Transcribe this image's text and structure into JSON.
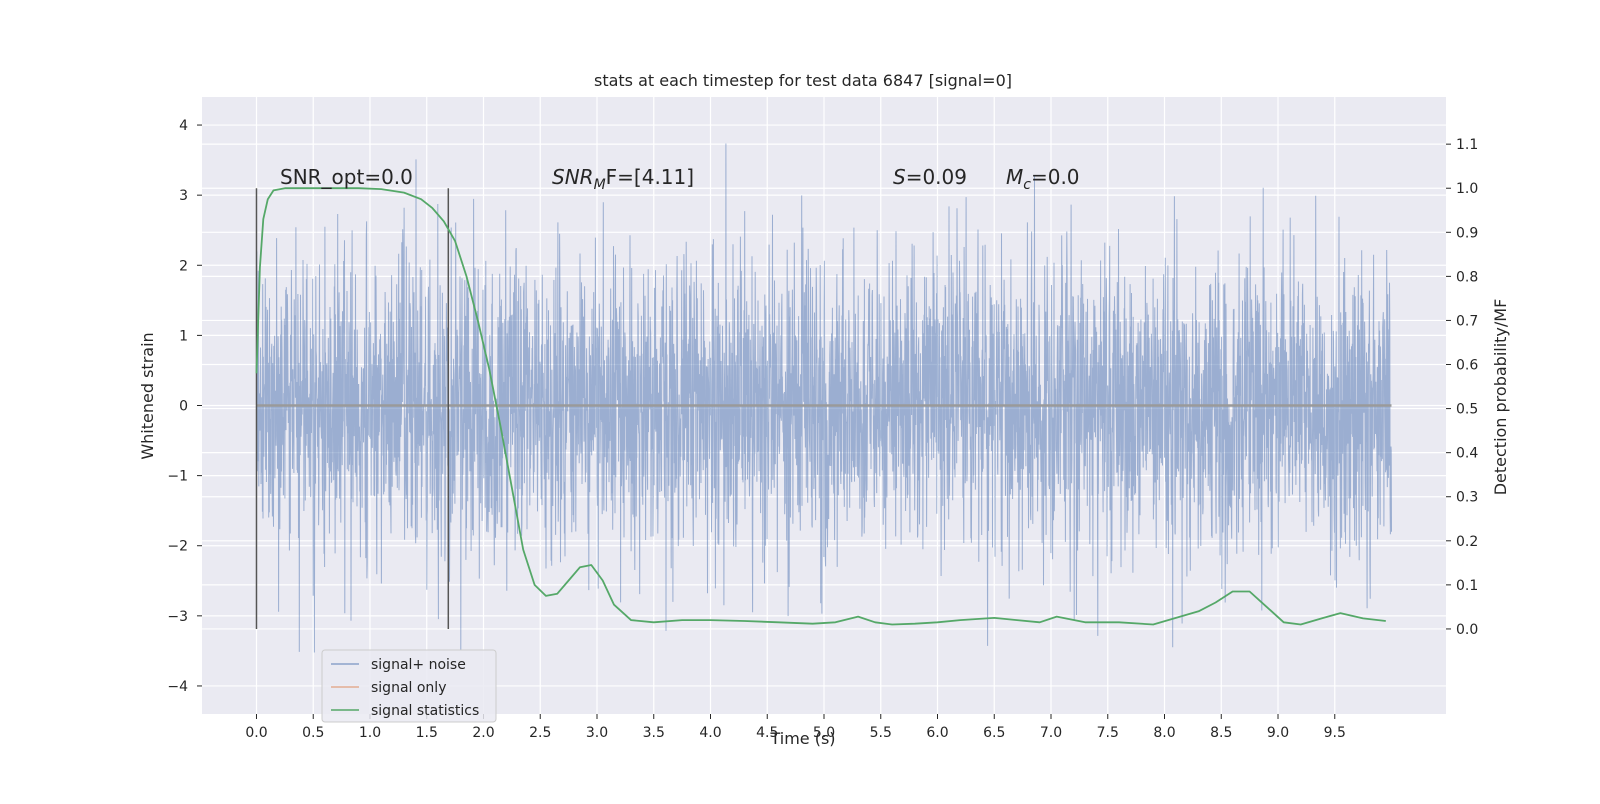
{
  "chart_data": {
    "type": "line",
    "title": "stats at each timestep for test data 6847 [signal=0]",
    "xlabel": "Time (s)",
    "ylabel": "Whitened strain",
    "y2label": "Detection probability/MF",
    "xlim": [
      -0.48,
      10.48
    ],
    "ylim": [
      -4.4,
      4.4
    ],
    "y2lim": [
      -0.193,
      1.207
    ],
    "xticks": [
      "0.0",
      "0.5",
      "1.0",
      "1.5",
      "2.0",
      "2.5",
      "3.0",
      "3.5",
      "4.0",
      "4.5",
      "5.0",
      "5.5",
      "6.0",
      "6.5",
      "7.0",
      "7.5",
      "8.0",
      "8.5",
      "9.0",
      "9.5"
    ],
    "yticks": [
      "4",
      "3",
      "2",
      "1",
      "0",
      "−1",
      "−2",
      "−3",
      "−4"
    ],
    "y2ticks": [
      "1.1",
      "1.0",
      "0.9",
      "0.8",
      "0.7",
      "0.6",
      "0.5",
      "0.4",
      "0.3",
      "0.2",
      "0.1",
      "0.0"
    ],
    "grid": true,
    "legend_position": "lower-left",
    "annotations": {
      "snr_opt": "SNR_opt=0.0",
      "snr_mf_base": "SNR",
      "snr_mf_sub": "M",
      "snr_mf_rest": "F=[4.11]",
      "s_sym": "S",
      "s_val": "=0.09",
      "mc_sym": "M",
      "mc_sub": "c",
      "mc_val": "=0.0"
    },
    "vertical_markers_x": [
      0.0,
      1.69
    ],
    "series": [
      {
        "name": "signal+ noise",
        "color": "#4c72b0",
        "description": "white-noise strain, sampled densely from 0.0 to 10.0 s, amplitude within about ±4",
        "t_start": 0.0,
        "t_end": 10.0,
        "std": 1.05,
        "range": [
          -3.9,
          4.05
        ]
      },
      {
        "name": "signal only",
        "color": "#dd8452",
        "x": [
          0.0,
          10.0
        ],
        "values": [
          0.0,
          0.0
        ]
      },
      {
        "name": "signal statistics",
        "color": "#55a868",
        "axis": "right",
        "x": [
          0.0,
          0.03,
          0.06,
          0.1,
          0.15,
          0.25,
          0.4,
          0.6,
          0.9,
          1.1,
          1.3,
          1.45,
          1.55,
          1.65,
          1.75,
          1.85,
          1.95,
          2.05,
          2.15,
          2.25,
          2.35,
          2.45,
          2.55,
          2.65,
          2.75,
          2.85,
          2.95,
          3.05,
          3.15,
          3.3,
          3.5,
          3.75,
          4.0,
          4.3,
          4.6,
          4.9,
          5.1,
          5.3,
          5.45,
          5.6,
          5.8,
          6.0,
          6.2,
          6.5,
          6.7,
          6.9,
          7.05,
          7.3,
          7.6,
          7.9,
          8.1,
          8.3,
          8.45,
          8.6,
          8.75,
          8.9,
          9.05,
          9.2,
          9.4,
          9.55,
          9.75,
          9.95
        ],
        "values": [
          0.58,
          0.82,
          0.93,
          0.975,
          0.995,
          1.0,
          1.0,
          1.0,
          1.0,
          0.998,
          0.99,
          0.975,
          0.955,
          0.925,
          0.88,
          0.8,
          0.7,
          0.59,
          0.46,
          0.32,
          0.18,
          0.1,
          0.075,
          0.08,
          0.11,
          0.14,
          0.145,
          0.11,
          0.055,
          0.02,
          0.015,
          0.02,
          0.02,
          0.018,
          0.015,
          0.012,
          0.015,
          0.028,
          0.015,
          0.01,
          0.012,
          0.015,
          0.02,
          0.025,
          0.02,
          0.015,
          0.028,
          0.015,
          0.015,
          0.01,
          0.025,
          0.04,
          0.06,
          0.085,
          0.085,
          0.05,
          0.015,
          0.01,
          0.025,
          0.036,
          0.024,
          0.018
        ]
      }
    ]
  }
}
